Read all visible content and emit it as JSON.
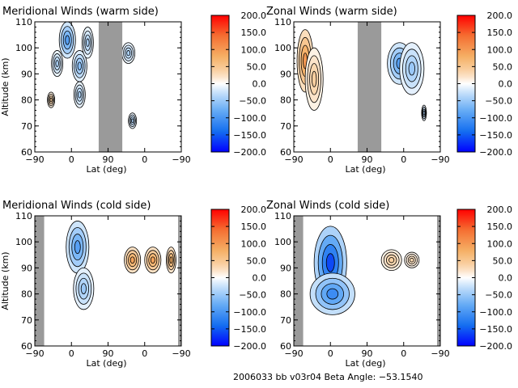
{
  "chart_data": [
    {
      "type": "heatmap",
      "title": "Meridional Winds (warm side)",
      "xlabel": "Lat (deg)",
      "ylabel": "Altitude (km)",
      "x_tick_labels": [
        "−90",
        "0",
        "90",
        "0",
        "−90"
      ],
      "ylim": [
        60,
        110
      ],
      "y_ticks": [
        60,
        70,
        80,
        90,
        100,
        110
      ],
      "gray_bands_lat": [
        [
          67,
          125
        ]
      ],
      "colorbar": {
        "min": -200,
        "max": 200,
        "tick_labels": [
          "200.0",
          "150.0",
          "100.0",
          "50.0",
          "0.0",
          "−50.0",
          "−100.0",
          "−150.0",
          "−200.0"
        ]
      },
      "blobs": [
        {
          "lat": -10,
          "alt": 103,
          "val": -90,
          "rx": 20,
          "ry": 7
        },
        {
          "lat": 20,
          "alt": 93,
          "val": -60,
          "rx": 18,
          "ry": 6
        },
        {
          "lat": 40,
          "alt": 102,
          "val": -40,
          "rx": 14,
          "ry": 6
        },
        {
          "lat": -35,
          "alt": 94,
          "val": -40,
          "rx": 14,
          "ry": 5
        },
        {
          "lat": -50,
          "alt": 80,
          "val": 40,
          "rx": 9,
          "ry": 3
        },
        {
          "lat": 20,
          "alt": 82,
          "val": -40,
          "rx": 14,
          "ry": 5
        },
        {
          "lat": 140,
          "alt": 98,
          "val": -40,
          "rx": 16,
          "ry": 4
        },
        {
          "lat": 150,
          "alt": 72,
          "val": -40,
          "rx": 10,
          "ry": 3
        }
      ]
    },
    {
      "type": "heatmap",
      "title": "Zonal Winds (warm side)",
      "xlabel": "Lat (deg)",
      "ylabel": "",
      "x_tick_labels": [
        "−90",
        "0",
        "90",
        "0",
        "−90"
      ],
      "ylim": [
        60,
        110
      ],
      "y_ticks": [
        60,
        70,
        80,
        90,
        100,
        110
      ],
      "gray_bands_lat": [
        [
          67,
          125
        ]
      ],
      "colorbar": {
        "min": -200,
        "max": 200,
        "tick_labels": [
          "200.0",
          "150.0",
          "100.0",
          "50.0",
          "0.0",
          "−50.0",
          "−100.0",
          "−150.0",
          "−200.0"
        ]
      },
      "blobs": [
        {
          "lat": -62,
          "alt": 95,
          "val": 100,
          "rx": 20,
          "ry": 12
        },
        {
          "lat": -40,
          "alt": 88,
          "val": 40,
          "rx": 22,
          "ry": 12
        },
        {
          "lat": 170,
          "alt": 94,
          "val": -90,
          "rx": 30,
          "ry": 8
        },
        {
          "lat": 200,
          "alt": 92,
          "val": -50,
          "rx": 30,
          "ry": 10
        },
        {
          "lat": 230,
          "alt": 75,
          "val": -40,
          "rx": 6,
          "ry": 3
        }
      ]
    },
    {
      "type": "heatmap",
      "title": "Meridional Winds (cold side)",
      "xlabel": "Lat (deg)",
      "ylabel": "Altitude (km)",
      "x_tick_labels": [
        "−90",
        "0",
        "90",
        "0",
        "−90"
      ],
      "ylim": [
        60,
        110
      ],
      "y_ticks": [
        60,
        70,
        80,
        90,
        100,
        110
      ],
      "gray_bands_lat": [
        [
          -97,
          -67
        ],
        [
          262,
          283
        ]
      ],
      "colorbar": {
        "min": -200,
        "max": 200,
        "tick_labels": [
          "200.0",
          "150.0",
          "100.0",
          "50.0",
          "0.0",
          "−50.0",
          "−100.0",
          "−150.0",
          "−200.0"
        ]
      },
      "blobs": [
        {
          "lat": 15,
          "alt": 98,
          "val": -90,
          "rx": 28,
          "ry": 10
        },
        {
          "lat": 30,
          "alt": 82,
          "val": -50,
          "rx": 25,
          "ry": 8
        },
        {
          "lat": 150,
          "alt": 93,
          "val": 90,
          "rx": 20,
          "ry": 5
        },
        {
          "lat": 200,
          "alt": 93,
          "val": 90,
          "rx": 20,
          "ry": 5
        },
        {
          "lat": 245,
          "alt": 93,
          "val": 80,
          "rx": 12,
          "ry": 5
        }
      ]
    },
    {
      "type": "heatmap",
      "title": "Zonal Winds (cold side)",
      "xlabel": "Lat (deg)",
      "ylabel": "",
      "x_tick_labels": [
        "−90",
        "0",
        "90",
        "0",
        "−90"
      ],
      "ylim": [
        60,
        110
      ],
      "y_ticks": [
        60,
        70,
        80,
        90,
        100,
        110
      ],
      "gray_bands_lat": [
        [
          -97,
          -67
        ],
        [
          262,
          283
        ]
      ],
      "colorbar": {
        "min": -200,
        "max": 200,
        "tick_labels": [
          "200.0",
          "150.0",
          "100.0",
          "50.0",
          "0.0",
          "−50.0",
          "−100.0",
          "−150.0",
          "−200.0"
        ]
      },
      "blobs": [
        {
          "lat": 0,
          "alt": 92,
          "val": -160,
          "rx": 40,
          "ry": 14
        },
        {
          "lat": 5,
          "alt": 80,
          "val": -110,
          "rx": 55,
          "ry": 8
        },
        {
          "lat": 150,
          "alt": 93,
          "val": 40,
          "rx": 25,
          "ry": 4
        },
        {
          "lat": 200,
          "alt": 93,
          "val": 30,
          "rx": 18,
          "ry": 3
        }
      ]
    }
  ],
  "footer": "2006033 bb v03r04   Beta Angle: −53.1540"
}
